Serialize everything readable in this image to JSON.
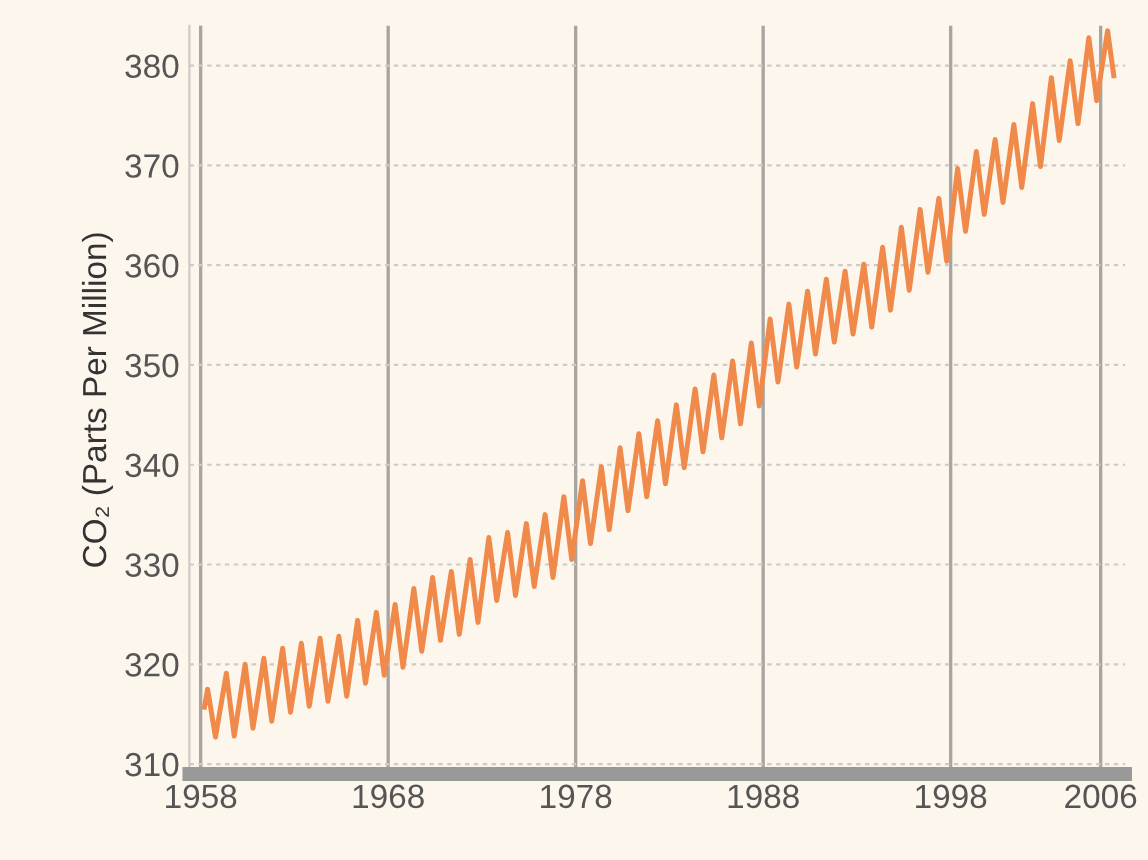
{
  "chart_data": {
    "type": "line",
    "ylabel": "CO₂ (Parts Per Million)",
    "xlim": [
      1957.4,
      2007.3
    ],
    "ylim": [
      309,
      384
    ],
    "xticks": [
      1958,
      1968,
      1978,
      1988,
      1998,
      2006
    ],
    "yticks": [
      310,
      320,
      330,
      340,
      350,
      360,
      370,
      380
    ],
    "grid": true,
    "series": [
      {
        "color": "#f08a4b",
        "x": [
          1958.2,
          1958.37,
          1958.79,
          1959.37,
          1959.79,
          1960.37,
          1960.79,
          1961.37,
          1961.79,
          1962.37,
          1962.79,
          1963.37,
          1963.79,
          1964.37,
          1964.79,
          1965.37,
          1965.79,
          1966.37,
          1966.79,
          1967.37,
          1967.79,
          1968.37,
          1968.79,
          1969.37,
          1969.79,
          1970.37,
          1970.79,
          1971.37,
          1971.79,
          1972.37,
          1972.79,
          1973.37,
          1973.79,
          1974.37,
          1974.79,
          1975.37,
          1975.79,
          1976.37,
          1976.79,
          1977.37,
          1977.79,
          1978.37,
          1978.79,
          1979.37,
          1979.79,
          1980.37,
          1980.79,
          1981.37,
          1981.79,
          1982.37,
          1982.79,
          1983.37,
          1983.79,
          1984.37,
          1984.79,
          1985.37,
          1985.79,
          1986.37,
          1986.79,
          1987.37,
          1987.79,
          1988.37,
          1988.79,
          1989.37,
          1989.79,
          1990.37,
          1990.79,
          1991.37,
          1991.79,
          1992.37,
          1992.79,
          1993.37,
          1993.79,
          1994.37,
          1994.79,
          1995.37,
          1995.79,
          1996.37,
          1996.79,
          1997.37,
          1997.79,
          1998.37,
          1998.79,
          1999.37,
          1999.79,
          2000.37,
          2000.79,
          2001.37,
          2001.79,
          2002.37,
          2002.79,
          2003.37,
          2003.79,
          2004.37,
          2004.79,
          2005.37,
          2005.79,
          2006.37,
          2006.7
        ],
        "values": [
          315.7,
          317.5,
          312.7,
          319.1,
          312.8,
          320.0,
          313.6,
          320.6,
          314.3,
          321.6,
          315.2,
          322.1,
          315.8,
          322.6,
          316.3,
          322.8,
          316.8,
          324.4,
          318.1,
          325.2,
          318.9,
          326.0,
          319.7,
          327.6,
          321.3,
          328.7,
          322.4,
          329.3,
          323.0,
          330.5,
          324.2,
          332.7,
          326.4,
          333.2,
          326.9,
          334.1,
          327.8,
          335.0,
          328.7,
          336.8,
          330.5,
          338.4,
          332.1,
          339.8,
          333.5,
          341.7,
          335.4,
          343.1,
          336.8,
          344.4,
          338.1,
          346.0,
          339.7,
          347.6,
          341.3,
          349.0,
          342.7,
          350.4,
          344.1,
          352.2,
          345.9,
          354.6,
          348.3,
          356.1,
          349.8,
          357.4,
          351.1,
          358.6,
          352.3,
          359.4,
          353.1,
          360.1,
          353.8,
          361.8,
          355.5,
          363.8,
          357.5,
          365.6,
          359.3,
          366.7,
          360.4,
          369.7,
          363.4,
          371.4,
          365.1,
          372.6,
          366.3,
          374.1,
          367.8,
          376.2,
          369.9,
          378.8,
          372.5,
          380.5,
          374.2,
          382.8,
          376.5,
          383.5,
          379.0
        ]
      }
    ]
  }
}
